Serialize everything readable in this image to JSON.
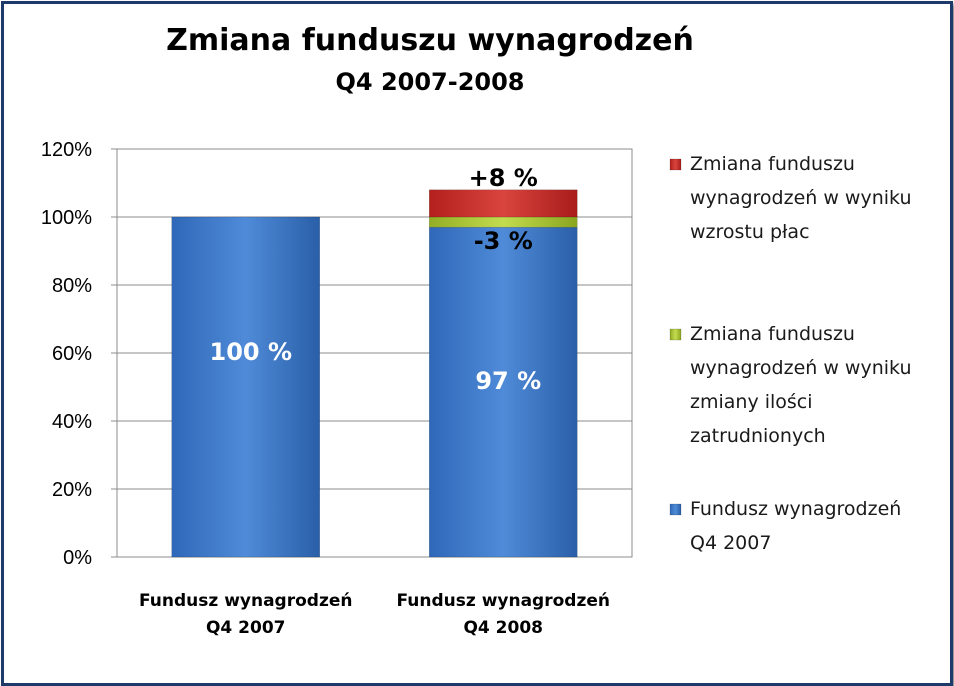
{
  "chart_data": {
    "type": "bar",
    "stacked": true,
    "title": "Zmiana funduszu wynagrodzeń",
    "subtitle": "Q4 2007-2008",
    "categories": [
      [
        "Fundusz wynagrodzeń",
        "Q4 2007"
      ],
      [
        "Fundusz wynagrodzeń",
        "Q4 2008"
      ]
    ],
    "ylim": [
      0,
      120
    ],
    "yticks": [
      "0%",
      "20%",
      "40%",
      "60%",
      "80%",
      "100%",
      "120%"
    ],
    "grid": true,
    "legend_position": "right",
    "series": [
      {
        "name": [
          "Fundusz wynagrodzeń",
          "Q4 2007"
        ],
        "values": [
          100,
          97
        ],
        "labels": [
          "100 %",
          "97 %"
        ],
        "color": "#4a86d4"
      },
      {
        "name": [
          "Zmiana funduszu",
          "wynagrodzeń w wyniku",
          "zmiany ilości",
          "zatrudnionych"
        ],
        "values": [
          0,
          3
        ],
        "labels": [
          "",
          "-3 %"
        ],
        "color": "#b5cf3f"
      },
      {
        "name": [
          "Zmiana funduszu",
          "wynagrodzeń w wyniku",
          "wzrostu płac"
        ],
        "values": [
          0,
          8
        ],
        "labels": [
          "",
          "+8 %"
        ],
        "color": "#d03a35"
      }
    ]
  }
}
